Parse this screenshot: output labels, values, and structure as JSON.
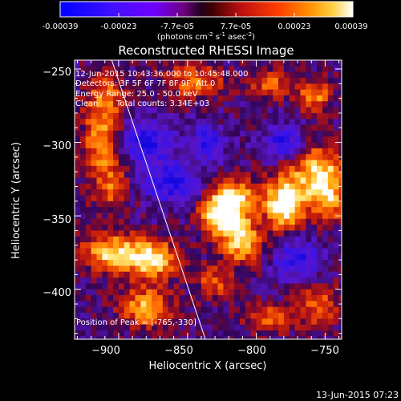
{
  "colorbar": {
    "ticks": [
      "-0.00039",
      "-0.00023",
      "-7.7e-05",
      "7.7e-05",
      "0.00023",
      "0.00039"
    ],
    "units_main": "(photons cm",
    "units_exp1": "-2",
    "units_mid": " s",
    "units_exp2": "-1",
    "units_tail": " asec",
    "units_exp3": "-2",
    "units_close": ")"
  },
  "chart_data": {
    "type": "heatmap",
    "title": "Reconstructed RHESSI Image",
    "xlabel": "Heliocentric X (arcsec)",
    "ylabel": "Heliocentric Y (arcsec)",
    "xlim": [
      -932,
      -738
    ],
    "ylim": [
      -434,
      -244
    ],
    "x_ticks": [
      -900,
      -850,
      -800,
      -750
    ],
    "y_ticks": [
      -250,
      -300,
      -350,
      -400
    ],
    "x_tick_labels": [
      "−900",
      "−850",
      "−800",
      "−750"
    ],
    "y_tick_labels": [
      "−250",
      "−300",
      "−350",
      "−400"
    ],
    "color_range": [
      -0.00039,
      0.00039
    ],
    "colormap": [
      "#0000ff",
      "#7000ff",
      "#3a005a",
      "#6a1080",
      "#c02020",
      "#ff8000",
      "#ffffff"
    ],
    "limb_line": [
      [
        -905,
        -244
      ],
      [
        -837,
        -434
      ]
    ],
    "peak": [
      -765,
      -330
    ],
    "grid": false
  },
  "annotations": {
    "time_range": "12-Jun-2015 10:43:36.000 to 10:45:48.000",
    "detectors": "Detectors: 3F 5F 6F 7F 8F 9F, Att 0",
    "energy": "Energy Range: 25.0 - 50.0 keV",
    "clean_label": "Clean",
    "counts": "Total counts: 3.34E+03",
    "peak_position": "Position of Peak = [-765,-330]"
  },
  "footer": {
    "timestamp": "13-Jun-2015 07:23"
  }
}
